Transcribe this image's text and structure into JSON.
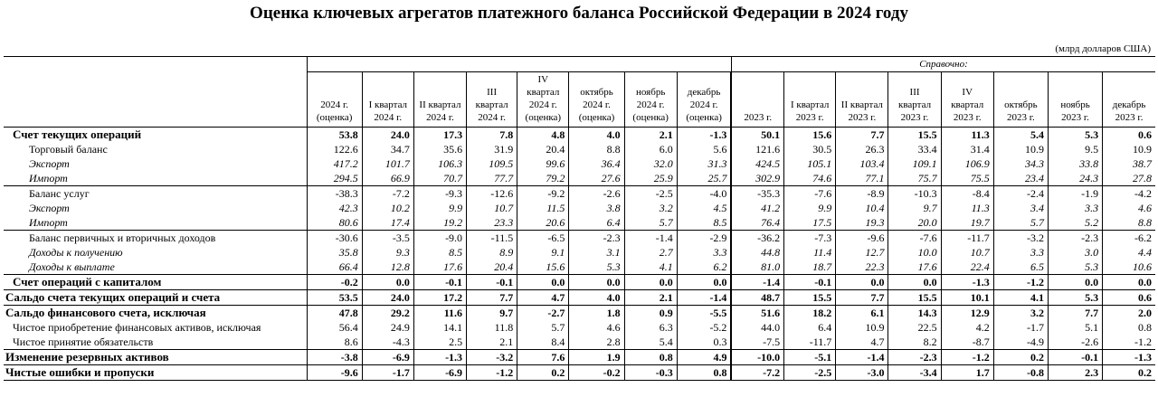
{
  "title": "Оценка ключевых агрегатов платежного баланса Российской Федерации в 2024 году",
  "unit": "(млрд долларов США)",
  "reference_label": "Справочно:",
  "columns": [
    "2024 г.\n(оценка)",
    "I квартал\n2024 г.",
    "II квартал\n2024 г.",
    "III\nквартал\n2024 г.",
    "IV\nквартал\n2024 г.\n(оценка)",
    "октябрь\n2024 г.\n(оценка)",
    "ноябрь\n2024 г.\n(оценка)",
    "декабрь\n2024 г.\n(оценка)",
    "2023 г.",
    "I квартал\n2023 г.",
    "II квартал\n2023 г.",
    "III\nквартал\n2023 г.",
    "IV\nквартал\n2023 г.",
    "октябрь\n2023 г.",
    "ноябрь\n2023 г.",
    "декабрь\n2023 г."
  ],
  "rows": [
    {
      "label": "Счет текущих операций",
      "style": "bold l1 first",
      "values": [
        "53.8",
        "24.0",
        "17.3",
        "7.8",
        "4.8",
        "4.0",
        "2.1",
        "-1.3",
        "50.1",
        "15.6",
        "7.7",
        "15.5",
        "11.3",
        "5.4",
        "5.3",
        "0.6"
      ]
    },
    {
      "label": "Торговый баланс",
      "style": "l2",
      "values": [
        "122.6",
        "34.7",
        "35.6",
        "31.9",
        "20.4",
        "8.8",
        "6.0",
        "5.6",
        "121.6",
        "30.5",
        "26.3",
        "33.4",
        "31.4",
        "10.9",
        "9.5",
        "10.9"
      ]
    },
    {
      "label": "Экспорт",
      "style": "ital l3",
      "values": [
        "417.2",
        "101.7",
        "106.3",
        "109.5",
        "99.6",
        "36.4",
        "32.0",
        "31.3",
        "424.5",
        "105.1",
        "103.4",
        "109.1",
        "106.9",
        "34.3",
        "33.8",
        "38.7"
      ]
    },
    {
      "label": "Импорт",
      "style": "ital l3 bot",
      "values": [
        "294.5",
        "66.9",
        "70.7",
        "77.7",
        "79.2",
        "27.6",
        "25.9",
        "25.7",
        "302.9",
        "74.6",
        "77.1",
        "75.7",
        "75.5",
        "23.4",
        "24.3",
        "27.8"
      ]
    },
    {
      "label": "Баланс услуг",
      "style": "l2",
      "values": [
        "-38.3",
        "-7.2",
        "-9.3",
        "-12.6",
        "-9.2",
        "-2.6",
        "-2.5",
        "-4.0",
        "-35.3",
        "-7.6",
        "-8.9",
        "-10.3",
        "-8.4",
        "-2.4",
        "-1.9",
        "-4.2"
      ]
    },
    {
      "label": "Экспорт",
      "style": "ital l3",
      "values": [
        "42.3",
        "10.2",
        "9.9",
        "10.7",
        "11.5",
        "3.8",
        "3.2",
        "4.5",
        "41.2",
        "9.9",
        "10.4",
        "9.7",
        "11.3",
        "3.4",
        "3.3",
        "4.6"
      ]
    },
    {
      "label": "Импорт",
      "style": "ital l3 bot",
      "values": [
        "80.6",
        "17.4",
        "19.2",
        "23.3",
        "20.6",
        "6.4",
        "5.7",
        "8.5",
        "76.4",
        "17.5",
        "19.3",
        "20.0",
        "19.7",
        "5.7",
        "5.2",
        "8.8"
      ]
    },
    {
      "label": "Баланс первичных и вторичных доходов",
      "style": "l2",
      "values": [
        "-30.6",
        "-3.5",
        "-9.0",
        "-11.5",
        "-6.5",
        "-2.3",
        "-1.4",
        "-2.9",
        "-36.2",
        "-7.3",
        "-9.6",
        "-7.6",
        "-11.7",
        "-3.2",
        "-2.3",
        "-6.2"
      ]
    },
    {
      "label": "Доходы к получению",
      "style": "ital l3",
      "values": [
        "35.8",
        "9.3",
        "8.5",
        "8.9",
        "9.1",
        "3.1",
        "2.7",
        "3.3",
        "44.8",
        "11.4",
        "12.7",
        "10.0",
        "10.7",
        "3.3",
        "3.0",
        "4.4"
      ]
    },
    {
      "label": "Доходы к выплате",
      "style": "ital l3 bot",
      "values": [
        "66.4",
        "12.8",
        "17.6",
        "20.4",
        "15.6",
        "5.3",
        "4.1",
        "6.2",
        "81.0",
        "18.7",
        "22.3",
        "17.6",
        "22.4",
        "6.5",
        "5.3",
        "10.6"
      ]
    },
    {
      "label": "Счет операций с капиталом",
      "style": "bold l1 bot",
      "values": [
        "-0.2",
        "0.0",
        "-0.1",
        "-0.1",
        "0.0",
        "0.0",
        "0.0",
        "0.0",
        "-1.4",
        "-0.1",
        "0.0",
        "0.0",
        "-1.3",
        "-1.2",
        "0.0",
        "0.0"
      ]
    },
    {
      "label": "Сальдо счета текущих операций и счета",
      "style": "bold l0 bot",
      "values": [
        "53.5",
        "24.0",
        "17.2",
        "7.7",
        "4.7",
        "4.0",
        "2.1",
        "-1.4",
        "48.7",
        "15.5",
        "7.7",
        "15.5",
        "10.1",
        "4.1",
        "5.3",
        "0.6"
      ]
    },
    {
      "label": "Сальдо финансового счета, исключая",
      "style": "bold l0",
      "values": [
        "47.8",
        "29.2",
        "11.6",
        "9.7",
        "-2.7",
        "1.8",
        "0.9",
        "-5.5",
        "51.6",
        "18.2",
        "6.1",
        "14.3",
        "12.9",
        "3.2",
        "7.7",
        "2.0"
      ]
    },
    {
      "label": "Чистое приобретение финансовых активов, исключая",
      "style": "lb",
      "values": [
        "56.4",
        "24.9",
        "14.1",
        "11.8",
        "5.7",
        "4.6",
        "6.3",
        "-5.2",
        "44.0",
        "6.4",
        "10.9",
        "22.5",
        "4.2",
        "-1.7",
        "5.1",
        "0.8"
      ]
    },
    {
      "label": "Чистое принятие обязательств",
      "style": "lb bot",
      "values": [
        "8.6",
        "-4.3",
        "2.5",
        "2.1",
        "8.4",
        "2.8",
        "5.4",
        "0.3",
        "-7.5",
        "-11.7",
        "4.7",
        "8.2",
        "-8.7",
        "-4.9",
        "-2.6",
        "-1.2"
      ]
    },
    {
      "label": "Изменение резервных активов",
      "style": "bold l0 bot",
      "values": [
        "-3.8",
        "-6.9",
        "-1.3",
        "-3.2",
        "7.6",
        "1.9",
        "0.8",
        "4.9",
        "-10.0",
        "-5.1",
        "-1.4",
        "-2.3",
        "-1.2",
        "0.2",
        "-0.1",
        "-1.3"
      ]
    },
    {
      "label": "Чистые ошибки и пропуски",
      "style": "bold l0 bot",
      "values": [
        "-9.6",
        "-1.7",
        "-6.9",
        "-1.2",
        "0.2",
        "-0.2",
        "-0.3",
        "0.8",
        "-7.2",
        "-2.5",
        "-3.0",
        "-3.4",
        "1.7",
        "-0.8",
        "2.3",
        "0.2"
      ]
    }
  ]
}
